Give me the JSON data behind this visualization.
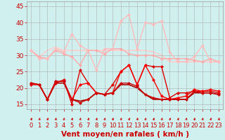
{
  "background_color": "#cff0ee",
  "grid_color": "#b0b0b0",
  "xlabel": "Vent moyen/en rafales ( km/h )",
  "xlabel_color": "#cc0000",
  "xlabel_fontsize": 7.5,
  "yticks": [
    15,
    20,
    25,
    30,
    35,
    40,
    45
  ],
  "xticks": [
    0,
    1,
    2,
    3,
    4,
    5,
    6,
    7,
    8,
    9,
    10,
    11,
    12,
    13,
    14,
    15,
    16,
    17,
    18,
    19,
    20,
    21,
    22,
    23
  ],
  "ylim": [
    13.5,
    46.5
  ],
  "xlim": [
    -0.5,
    23.5
  ],
  "series": [
    {
      "data": [
        31.5,
        29.5,
        29.0,
        31.5,
        30.5,
        29.5,
        27.0,
        31.5,
        31.5,
        30.5,
        32.0,
        32.0,
        30.5,
        30.0,
        30.0,
        30.0,
        29.0,
        29.0,
        29.0,
        29.0,
        28.5,
        28.0,
        29.0,
        28.0
      ],
      "color": "#ffaaaa",
      "linewidth": 1.0,
      "marker": "D",
      "markersize": 2.0,
      "zorder": 2
    },
    {
      "data": [
        31.5,
        29.0,
        29.0,
        32.0,
        31.0,
        36.5,
        33.0,
        31.5,
        25.5,
        32.0,
        32.0,
        40.5,
        42.5,
        32.0,
        40.0,
        39.5,
        40.5,
        31.0,
        28.0,
        28.0,
        29.5,
        33.0,
        28.0,
        28.0
      ],
      "color": "#ffbbbb",
      "linewidth": 1.0,
      "marker": "D",
      "markersize": 2.0,
      "zorder": 2
    },
    {
      "data": [
        31.5,
        29.5,
        31.5,
        32.5,
        31.5,
        31.5,
        31.5,
        31.5,
        31.5,
        31.5,
        31.5,
        31.5,
        31.5,
        31.5,
        31.5,
        31.0,
        30.0,
        28.0,
        28.0,
        28.0,
        28.0,
        28.0,
        28.0,
        28.0
      ],
      "color": "#ffcccc",
      "linewidth": 1.2,
      "marker": null,
      "markersize": 0,
      "zorder": 1
    },
    {
      "data": [
        21.0,
        21.0,
        16.5,
        21.5,
        22.5,
        15.0,
        25.5,
        21.5,
        18.5,
        18.0,
        21.0,
        25.0,
        27.0,
        21.0,
        27.0,
        26.5,
        26.5,
        17.0,
        18.5,
        18.5,
        19.0,
        19.0,
        19.0,
        18.5
      ],
      "color": "#dd0000",
      "linewidth": 1.0,
      "marker": "D",
      "markersize": 2.0,
      "zorder": 3
    },
    {
      "data": [
        21.5,
        21.0,
        16.5,
        22.0,
        22.0,
        16.5,
        21.0,
        21.5,
        18.5,
        18.0,
        18.5,
        25.0,
        27.0,
        21.0,
        27.0,
        22.5,
        17.5,
        16.5,
        17.0,
        17.5,
        19.5,
        19.0,
        19.5,
        19.0
      ],
      "color": "#ff0000",
      "linewidth": 1.0,
      "marker": "D",
      "markersize": 2.0,
      "zorder": 3
    },
    {
      "data": [
        21.5,
        21.0,
        16.5,
        22.0,
        22.0,
        16.5,
        15.5,
        16.5,
        18.5,
        18.0,
        18.5,
        21.5,
        21.5,
        20.5,
        18.0,
        17.0,
        16.5,
        16.5,
        16.5,
        16.5,
        19.0,
        18.5,
        18.5,
        18.0
      ],
      "color": "#cc0000",
      "linewidth": 1.0,
      "marker": "D",
      "markersize": 2.0,
      "zorder": 3
    },
    {
      "data": [
        21.5,
        21.0,
        16.5,
        21.5,
        21.5,
        16.5,
        16.0,
        16.5,
        18.5,
        18.0,
        18.5,
        21.0,
        21.0,
        20.0,
        18.0,
        16.5,
        16.5,
        16.5,
        16.5,
        16.5,
        18.5,
        18.5,
        18.5,
        18.0
      ],
      "color": "#aa0000",
      "linewidth": 1.2,
      "marker": null,
      "markersize": 0,
      "zorder": 1
    }
  ],
  "arrow_color": "#cc0000",
  "tick_color": "#cc0000",
  "tick_fontsize": 6.0,
  "ytick_fontsize": 6.5
}
